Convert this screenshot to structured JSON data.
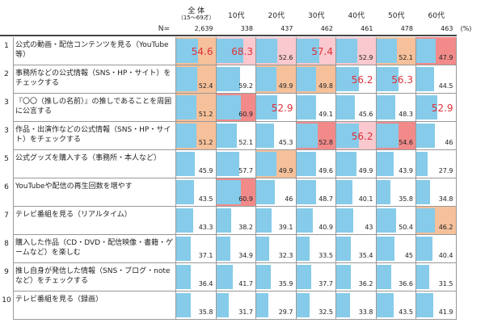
{
  "table": {
    "columns": [
      {
        "label": "全 体",
        "sublabel": "（15～69才）"
      },
      {
        "label": "10代"
      },
      {
        "label": "20代"
      },
      {
        "label": "30代"
      },
      {
        "label": "40代"
      },
      {
        "label": "50代"
      },
      {
        "label": "60代"
      }
    ],
    "n_label": "N=",
    "n_values": [
      {
        "value": 2639,
        "label": "2,639"
      },
      338,
      437,
      462,
      461,
      478,
      463
    ],
    "unit": "(%)",
    "bar_color": "#86cbe9",
    "rows": [
      {
        "rank": "1",
        "label": "公式の動画・配信コンテンツを見る（YouTube等）",
        "values": [
          54.6,
          68.3,
          52.6,
          57.4,
          52.9,
          52.1,
          47.9
        ],
        "cell_fill": [
          "#f5c09a",
          "#f9c9cf",
          "#f9c9cf",
          "#f9c9cf",
          "#f9c9cf",
          "#f5c09a",
          "#f28a8a"
        ],
        "emphasis": [
          true,
          true,
          false,
          true,
          false,
          false,
          false
        ]
      },
      {
        "rank": "2",
        "label": "事務所などの公式情報（SNS・HP・サイト）をチェックする",
        "values": [
          52.4,
          59.2,
          49.9,
          49.8,
          56.2,
          56.3,
          44.5
        ],
        "cell_fill": [
          "#f5c09a",
          null,
          "#f5c09a",
          "#f5c09a",
          null,
          null,
          null
        ],
        "emphasis": [
          false,
          false,
          false,
          false,
          true,
          true,
          false
        ]
      },
      {
        "rank": "3",
        "label": "『〇〇（推しの名前）』の推しであることを周囲に公言する",
        "values": [
          51.2,
          60.9,
          52.9,
          49.1,
          45.6,
          48.3,
          52.9
        ],
        "cell_fill": [
          "#f5c09a",
          "#f28a8a",
          null,
          null,
          null,
          null,
          null
        ],
        "emphasis": [
          false,
          false,
          true,
          false,
          false,
          false,
          true
        ]
      },
      {
        "rank": "3",
        "label": "作品・出演作などの公式情報（SNS・HP・サイト）をチェックする",
        "values": [
          51.2,
          52.1,
          45.3,
          52.8,
          56.2,
          54.6,
          46.0
        ],
        "cell_fill": [
          "#f5c09a",
          null,
          null,
          "#f28a8a",
          "#f9c9cf",
          "#f28a8a",
          null
        ],
        "emphasis": [
          false,
          false,
          false,
          false,
          true,
          false,
          false
        ]
      },
      {
        "rank": "5",
        "label": "公式グッズを購入する（事務所・本人など）",
        "values": [
          45.9,
          57.7,
          49.9,
          49.6,
          49.9,
          43.9,
          27.9
        ],
        "cell_fill": [
          null,
          null,
          "#f5c09a",
          null,
          null,
          null,
          null
        ],
        "emphasis": [
          false,
          false,
          false,
          false,
          false,
          false,
          false
        ]
      },
      {
        "rank": "6",
        "label": "YouTubeや配信の再生回数を増やす",
        "values": [
          43.5,
          60.9,
          46.0,
          48.7,
          40.1,
          35.8,
          34.8
        ],
        "cell_fill": [
          null,
          "#f28a8a",
          null,
          null,
          null,
          null,
          null
        ],
        "emphasis": [
          false,
          false,
          false,
          false,
          false,
          false,
          false
        ]
      },
      {
        "rank": "7",
        "label": "テレビ番組を見る（リアルタイム）",
        "values": [
          43.3,
          38.2,
          39.1,
          40.9,
          43.0,
          50.4,
          46.2
        ],
        "cell_fill": [
          null,
          null,
          null,
          null,
          null,
          null,
          "#f5c09a"
        ],
        "emphasis": [
          false,
          false,
          false,
          false,
          false,
          false,
          false
        ]
      },
      {
        "rank": "8",
        "label": "購入した作品（CD・DVD・配信映像・書籍・ゲームなど）を楽しむ",
        "values": [
          37.1,
          34.9,
          32.3,
          33.5,
          35.4,
          45.0,
          40.4
        ],
        "cell_fill": [
          null,
          null,
          null,
          null,
          null,
          null,
          null
        ],
        "emphasis": [
          false,
          false,
          false,
          false,
          false,
          false,
          false
        ]
      },
      {
        "rank": "9",
        "label": "推し自身が発信した情報（SNS・ブログ・noteなど）をチェックする",
        "values": [
          36.4,
          41.7,
          35.9,
          37.7,
          36.2,
          36.6,
          31.5
        ],
        "cell_fill": [
          null,
          null,
          null,
          null,
          null,
          null,
          null
        ],
        "emphasis": [
          false,
          false,
          false,
          false,
          false,
          false,
          false
        ]
      },
      {
        "rank": "10",
        "label": "テレビ番組を見る（録画）",
        "values": [
          35.8,
          31.7,
          29.7,
          32.5,
          33.8,
          43.5,
          41.9
        ],
        "cell_fill": [
          null,
          null,
          null,
          null,
          null,
          null,
          null
        ],
        "emphasis": [
          false,
          false,
          false,
          false,
          false,
          false,
          false
        ]
      }
    ]
  }
}
